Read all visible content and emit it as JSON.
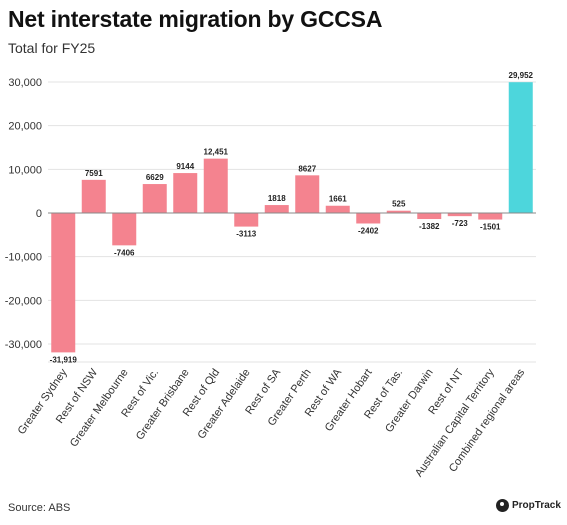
{
  "title": "Net interstate migration by GCCSA",
  "subtitle": "Total for FY25",
  "source": "Source: ABS",
  "brand": {
    "name": "PropTrack",
    "icon": "proptrack-logo-icon"
  },
  "colors": {
    "positive": "#f4838f",
    "negative": "#f4838f",
    "highlight": "#4dd6dc",
    "grid": "#e3e3e3",
    "zero_line": "#888888"
  },
  "chart_data": {
    "type": "bar",
    "title": "Net interstate migration by GCCSA",
    "subtitle": "Total for FY25",
    "xlabel": "",
    "ylabel": "",
    "ylim": [
      -35000,
      32000
    ],
    "yticks": [
      -30000,
      -20000,
      -10000,
      0,
      10000,
      20000,
      30000
    ],
    "ytick_labels": [
      "-30,000",
      "-20,000",
      "-10,000",
      "0",
      "10,000",
      "20,000",
      "30,000"
    ],
    "grid": true,
    "categories": [
      "Greater Sydney",
      "Rest of NSW",
      "Greater Melbourne",
      "Rest of Vic.",
      "Greater Brisbane",
      "Rest of Qld",
      "Greater Adelaide",
      "Rest of SA",
      "Greater Perth",
      "Rest of WA",
      "Greater Hobart",
      "Rest of Tas.",
      "Greater Darwin",
      "Rest of NT",
      "Australian Capital Territory",
      "Combined regional areas"
    ],
    "values": [
      -31919,
      7591,
      -7406,
      6629,
      9144,
      12451,
      -3113,
      1818,
      8627,
      1661,
      -2402,
      525,
      -1382,
      -723,
      -1501,
      29952
    ],
    "value_labels": [
      "-31,919",
      "7591",
      "-7406",
      "6629",
      "9144",
      "12,451",
      "-3113",
      "1818",
      "8627",
      "1661",
      "-2402",
      "525",
      "-1382",
      "-723",
      "-1501",
      "29,952"
    ],
    "highlight_index": 15
  }
}
